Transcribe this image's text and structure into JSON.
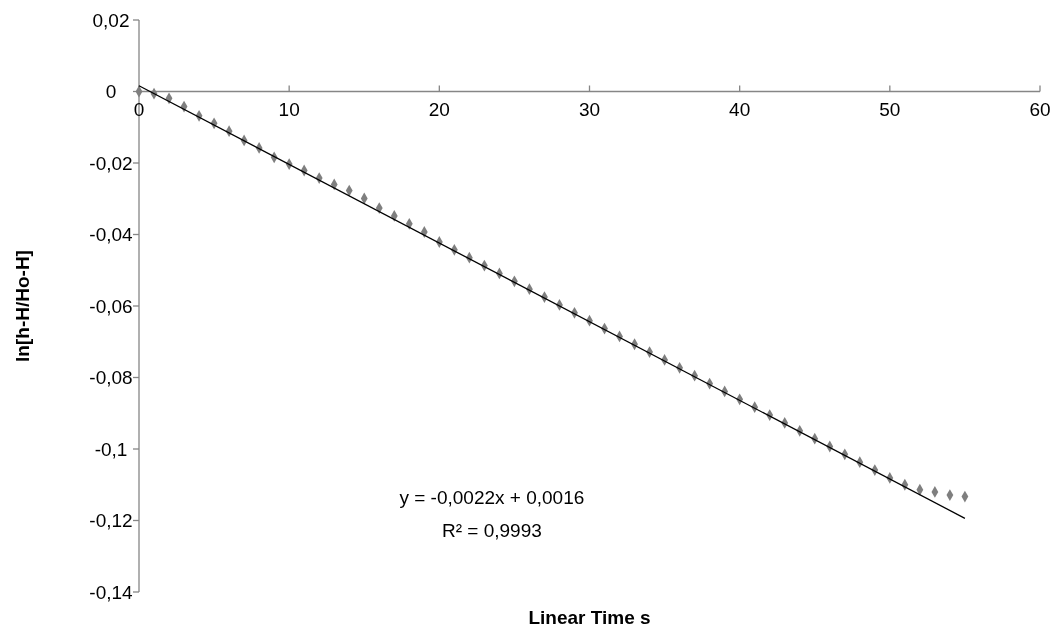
{
  "chart_data": {
    "type": "scatter",
    "xlabel": "Linear Time s",
    "ylabel": "ln[h-H/Ho-H]",
    "annotations": [
      "y = -0,0022x + 0,0016",
      "R² = 0,9993"
    ],
    "xlim": [
      0,
      60
    ],
    "ylim": [
      -0.14,
      0.02
    ],
    "xticks": [
      0,
      10,
      20,
      30,
      40,
      50,
      60
    ],
    "yticks": [
      {
        "value": 0.02,
        "label": "0,02"
      },
      {
        "value": 0,
        "label": "0"
      },
      {
        "value": -0.02,
        "label": "-0,02"
      },
      {
        "value": -0.04,
        "label": "-0,04"
      },
      {
        "value": -0.06,
        "label": "-0,06"
      },
      {
        "value": -0.08,
        "label": "-0,08"
      },
      {
        "value": -0.1,
        "label": "-0,1"
      },
      {
        "value": -0.12,
        "label": "-0,12"
      },
      {
        "value": -0.14,
        "label": "-0,14"
      }
    ],
    "grid": false,
    "series": [
      {
        "color": "#7f7f7f",
        "marker": "diamond",
        "x": [
          0,
          1,
          2,
          3,
          4,
          5,
          6,
          7,
          8,
          9,
          10,
          11,
          12,
          13,
          14,
          15,
          16,
          17,
          18,
          19,
          20,
          21,
          22,
          23,
          24,
          25,
          26,
          27,
          28,
          29,
          30,
          31,
          32,
          33,
          34,
          35,
          36,
          37,
          38,
          39,
          40,
          41,
          42,
          43,
          44,
          45,
          46,
          47,
          48,
          49,
          50,
          51,
          52,
          53,
          54,
          55
        ],
        "values": [
          0,
          -0.0006,
          -0.0019,
          -0.0042,
          -0.0068,
          -0.0089,
          -0.0111,
          -0.0137,
          -0.0158,
          -0.0184,
          -0.0203,
          -0.0221,
          -0.0242,
          -0.026,
          -0.0277,
          -0.0299,
          -0.0326,
          -0.0348,
          -0.037,
          -0.0393,
          -0.0421,
          -0.0443,
          -0.0465,
          -0.0487,
          -0.0509,
          -0.0531,
          -0.0553,
          -0.0575,
          -0.0597,
          -0.0619,
          -0.0641,
          -0.0663,
          -0.0685,
          -0.0707,
          -0.0729,
          -0.0751,
          -0.0773,
          -0.0795,
          -0.0817,
          -0.0839,
          -0.0861,
          -0.0883,
          -0.0905,
          -0.0927,
          -0.0949,
          -0.0971,
          -0.0993,
          -0.1015,
          -0.1037,
          -0.1059,
          -0.1081,
          -0.11,
          -0.1114,
          -0.112,
          -0.1129,
          -0.1133
        ]
      },
      {
        "type": "line",
        "color": "#000000",
        "marker": "none",
        "x": [
          0,
          55
        ],
        "values": [
          0.0016,
          -0.1194
        ]
      }
    ]
  }
}
